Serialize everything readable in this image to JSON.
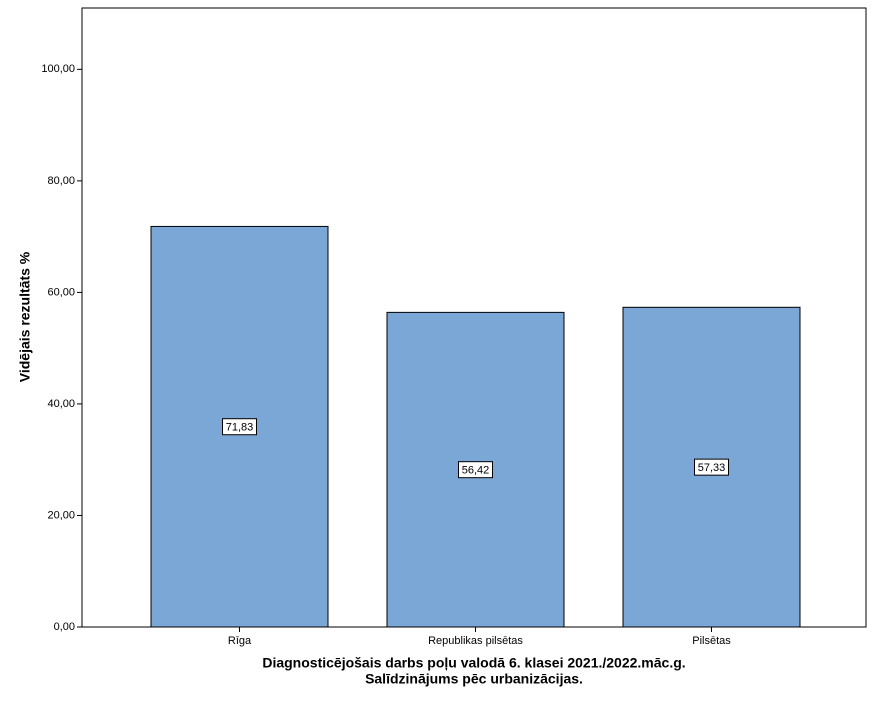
{
  "chart_data": {
    "type": "bar",
    "y_label": "Vidējais rezultāts %",
    "x_label_lines": [
      "Diagnosticējošais darbs poļu valodā 6. klasei 2021./2022.māc.g.",
      "Salīdzinājums pēc urbanizācijas."
    ],
    "categories": [
      "Rīga",
      "Republikas pilsētas",
      "Pilsētas"
    ],
    "values": [
      71.83,
      56.42,
      57.33
    ],
    "value_labels": [
      "71,83",
      "56,42",
      "57,33"
    ],
    "color": "#7ba7d6",
    "ylim": [
      0,
      111
    ],
    "yticks": [
      {
        "value": 0,
        "label": "0,00"
      },
      {
        "value": 20,
        "label": "20,00"
      },
      {
        "value": 40,
        "label": "40,00"
      },
      {
        "value": 60,
        "label": "60,00"
      },
      {
        "value": 80,
        "label": "80,00"
      },
      {
        "value": 100,
        "label": "100,00"
      }
    ],
    "grid": false
  }
}
